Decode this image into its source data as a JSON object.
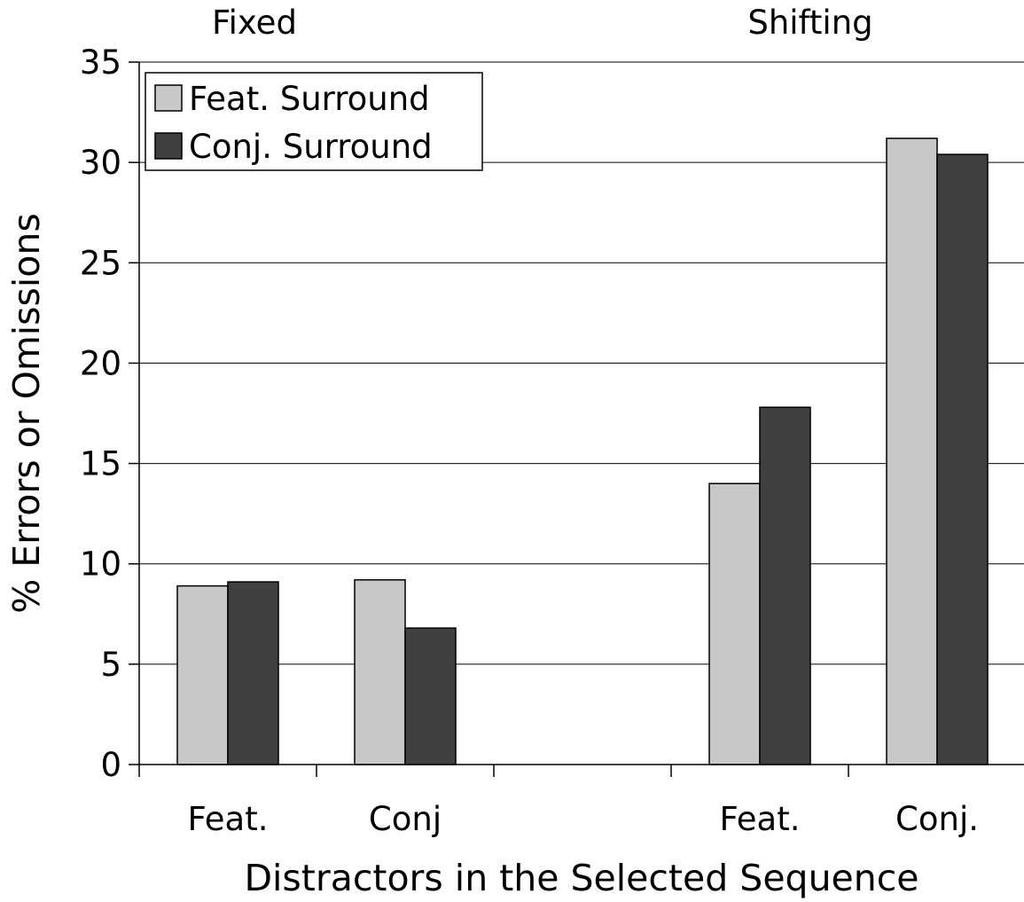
{
  "chart_data": {
    "type": "bar",
    "title": "",
    "group_labels": [
      "Fixed",
      "Shifting"
    ],
    "categories": [
      "Feat.",
      "Conj",
      "",
      "Feat.",
      "Conj."
    ],
    "series": [
      {
        "name": "Feat. Surround",
        "color": "#c8c8c8",
        "values": [
          8.9,
          9.2,
          null,
          14.0,
          31.2
        ]
      },
      {
        "name": "Conj. Surround",
        "color": "#404040",
        "values": [
          9.1,
          6.8,
          null,
          17.8,
          30.4
        ]
      }
    ],
    "xlabel": "Distractors in the Selected Sequence",
    "ylabel": "% Errors or Omissions",
    "ylim": [
      0,
      35
    ],
    "yticks": [
      0,
      5,
      10,
      15,
      20,
      25,
      30,
      35
    ],
    "grid": true,
    "legend_position": "top-left"
  }
}
